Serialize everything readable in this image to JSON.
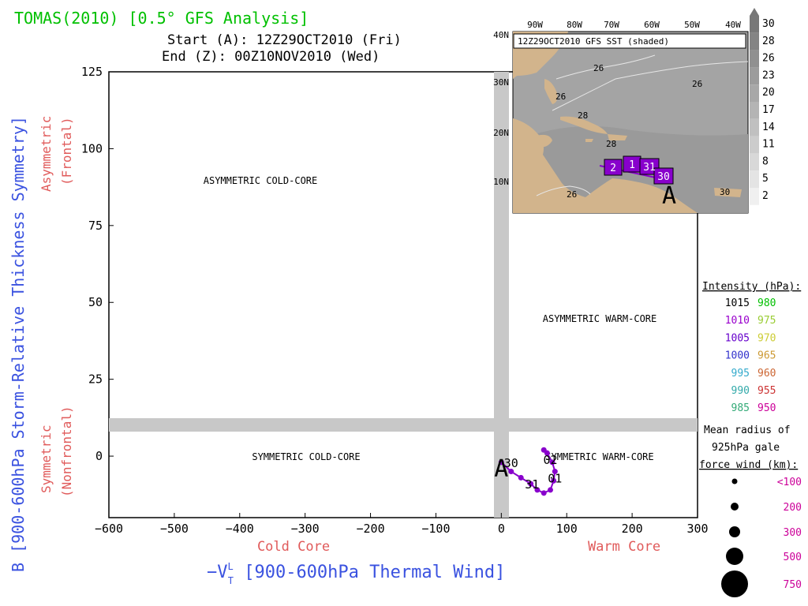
{
  "title": "TOMAS(2010) [0.5° GFS Analysis]",
  "start_line": "Start (A): 12Z29OCT2010 (Fri)",
  "end_line": "End (Z): 00Z10NOV2010 (Wed)",
  "ylabel": "B [900-600hPa Storm-Relative Thickness Symmetry]",
  "ylabel_upper": "Asymmetric",
  "ylabel_upper2": "(Frontal)",
  "ylabel_lower": "Symmetric",
  "ylabel_lower2": "(Nonfrontal)",
  "xlabel_prefix": "−V",
  "xlabel_sup": "L",
  "xlabel_sub": "T",
  "xlabel_rest": " [900-600hPa Thermal Wind]",
  "xlabel_left": "Cold Core",
  "xlabel_right": "Warm Core",
  "quadrants": {
    "asym_cold": "ASYMMETRIC COLD-CORE",
    "asym_warm": "ASYMMETRIC WARM-CORE",
    "sym_cold": "SYMMETRIC COLD-CORE",
    "sym_warm": "SYMMETRIC WARM-CORE"
  },
  "colors": {
    "title": "#00c000",
    "axis_label": "#3a52e0",
    "sublabel": "#e05a5a",
    "track": "#8800cc",
    "shade": "#c8c8c8",
    "land": "#d2b48c",
    "sea": "#a4a4a4"
  },
  "chart_data": {
    "type": "scatter",
    "xlim": [
      -600,
      300
    ],
    "ylim": [
      -20,
      125
    ],
    "xticks": [
      "−600",
      "−500",
      "−400",
      "−300",
      "−200",
      "−100",
      "0",
      "100",
      "200",
      "300"
    ],
    "yticks": [
      "0",
      "25",
      "50",
      "75",
      "100",
      "125"
    ],
    "series": [
      {
        "x": [
          0,
          15,
          30,
          45,
          55,
          65,
          75,
          80,
          82,
          78,
          70,
          65
        ],
        "y": [
          -2,
          -5,
          -7,
          -9,
          -11,
          -12,
          -11,
          -8,
          -5,
          -2,
          1,
          2
        ]
      }
    ],
    "point_labels": [
      {
        "text": "A",
        "x": 0,
        "y": -3
      },
      {
        "text": "30",
        "x": 15,
        "y": -2
      },
      {
        "text": "31",
        "x": 47,
        "y": -9
      },
      {
        "text": "01",
        "x": 82,
        "y": -7
      },
      {
        "text": "02",
        "x": 75,
        "y": -1
      }
    ]
  },
  "inset": {
    "title": "12Z29OCT2010 GFS SST (shaded)",
    "lon_labels": [
      "90W",
      "80W",
      "70W",
      "60W",
      "50W",
      "40W"
    ],
    "lat_labels": [
      "40N",
      "30N",
      "20N",
      "10N"
    ],
    "contour_labels": [
      "26",
      "26",
      "28",
      "28",
      "26",
      "26",
      "30"
    ],
    "track_labels": [
      "2",
      "1",
      "31",
      "30"
    ],
    "start_marker": "A",
    "colorbar": [
      "30",
      "28",
      "26",
      "23",
      "20",
      "17",
      "14",
      "11",
      "8",
      "5",
      "2"
    ]
  },
  "legend": {
    "intensity_title": "Intensity (hPa):",
    "pressures": [
      {
        "a": "1015",
        "ac": "#000000",
        "b": "980",
        "bc": "#00c000"
      },
      {
        "a": "1010",
        "ac": "#9900cc",
        "b": "975",
        "bc": "#99cc33"
      },
      {
        "a": "1005",
        "ac": "#6600cc",
        "b": "970",
        "bc": "#cccc33"
      },
      {
        "a": "1000",
        "ac": "#3333cc",
        "b": "965",
        "bc": "#cc9933"
      },
      {
        "a": "995",
        "ac": "#33aacc",
        "b": "960",
        "bc": "#cc6633"
      },
      {
        "a": "990",
        "ac": "#33aaaa",
        "b": "955",
        "bc": "#cc3333"
      },
      {
        "a": "985",
        "ac": "#33aa77",
        "b": "950",
        "bc": "#cc0099"
      }
    ],
    "radius_title1": "Mean radius of",
    "radius_title2": "925hPa gale",
    "radius_title3": "force wind (km):",
    "radii": [
      "<100",
      "200",
      "300",
      "500",
      "750"
    ]
  }
}
